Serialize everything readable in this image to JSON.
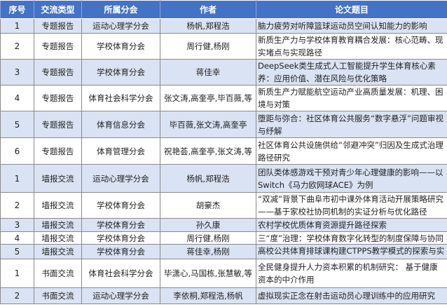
{
  "headers": [
    "序号",
    "交流类型",
    "所属分会",
    "作者",
    "论文题目"
  ],
  "rows": [
    {
      "seq": "1",
      "type": "专题报告",
      "branch": "运动心理学分会",
      "authors": "杨帆,郑程浩",
      "title": "脑力疲劳对听障篮球运动员空间认知能力的影响"
    },
    {
      "seq": "2",
      "type": "专题报告",
      "branch": "学校体育分会",
      "authors": "周行健,杨刚",
      "title": "新质生产力与学校体育教育耦合发展：核心范畴、现实堵点与实现路径"
    },
    {
      "seq": "3",
      "type": "专题报告",
      "branch": "学校体育分会",
      "authors": "蒋佳幸",
      "title": "DeepSeek类生成式人工智能提升学生体育核心素养：应用价值、潜在风险与优化策略"
    },
    {
      "seq": "4",
      "type": "专题报告",
      "branch": "体育社会科学分会",
      "authors": "张文涛,高奎亭,毕百薇,等",
      "title": "新质生产力赋能航空运动产业高质量发展：机理、困境与对策"
    },
    {
      "seq": "5",
      "type": "专题报告",
      "branch": "体育信息分会",
      "authors": "毕百薇,张文涛,高奎亭",
      "title": "堕距与弥合：社区体育公共服务“数字悬浮”问题审视与纾解"
    },
    {
      "seq": "6",
      "type": "专题报告",
      "branch": "体育管理分会",
      "authors": "祝艳荟,高奎亭,张文涛,等",
      "title": "社区体育公共设施供给“邻避冲突”归因及生成式治理路径研究"
    },
    {
      "seq": "1",
      "type": "墙报交流",
      "branch": "运动心理学分会",
      "authors": "杨帆,郑程浩",
      "title": "团队类体感游戏干预对青少年心理健康的影响——以Switch《马力欧网球ACE》为例"
    },
    {
      "seq": "2",
      "type": "墙报交流",
      "branch": "学校体育分会",
      "authors": "胡豪杰",
      "title": "“双减”背景下曲阜市初中课外体育活动开展策略研究——基于家校社协同机制的实证分析与优化路径"
    },
    {
      "seq": "3",
      "type": "墙报交流",
      "branch": "学校体育分会",
      "authors": "孙久康",
      "title": "农村学校优质体育资源提升路径探索"
    },
    {
      "seq": "4",
      "type": "墙报交流",
      "branch": "学校体育分会",
      "authors": "周行健,杨刚",
      "title": "三“度”治理：学校体育数字化转型的制度保障与协同路径"
    },
    {
      "seq": "5",
      "type": "墙报交流",
      "branch": "学校体育分会",
      "authors": "蒋佳幸,杨刚",
      "title": "高校公共体育排球课构建CTPPS教学模式的探索与实践"
    },
    {
      "seq": "1",
      "type": "书面交流",
      "branch": "体育社会科学分会",
      "authors": "毕潇心,马国栋,张慧敏,等",
      "title": "全民健身提升人力资本积累的机制研究： 基于健康资本的中介作用"
    },
    {
      "seq": "2",
      "type": "书面交流",
      "branch": "运动心理学分会",
      "authors": "李依桐,郑程浩,杨帆",
      "title": "虚拟现实正念在射击运动员心理训练中的应用研究"
    }
  ],
  "colors": {
    "header": "#4472c4",
    "alt_row": "#dae3f3"
  }
}
